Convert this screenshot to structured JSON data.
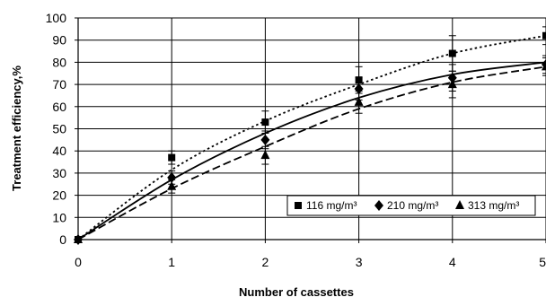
{
  "chart_data": {
    "type": "scatter",
    "title": "",
    "xlabel": "Number of cassettes",
    "ylabel": "Treatment efficiency,%",
    "xlim": [
      0,
      5
    ],
    "ylim": [
      0,
      100
    ],
    "x_ticks": [
      "0",
      "1",
      "2",
      "3",
      "4",
      "5"
    ],
    "y_ticks": [
      "0",
      "10",
      "20",
      "30",
      "40",
      "50",
      "60",
      "70",
      "80",
      "90",
      "100"
    ],
    "grid": true,
    "legend_position": "right-middle",
    "series": [
      {
        "name": "116 mg/m³",
        "marker": "square",
        "trend_style": "dotted",
        "x": [
          0,
          1,
          2,
          3,
          4,
          5
        ],
        "y": [
          0,
          37,
          53,
          72,
          84,
          92
        ],
        "error": [
          0,
          3,
          5,
          6,
          8,
          4
        ],
        "trend": [
          [
            0,
            0
          ],
          [
            1,
            31.5
          ],
          [
            2,
            53.5
          ],
          [
            3,
            70
          ],
          [
            4,
            84
          ],
          [
            5,
            92
          ]
        ]
      },
      {
        "name": "210 mg/m³",
        "marker": "diamond",
        "trend_style": "solid",
        "x": [
          0,
          1,
          2,
          3,
          4,
          5
        ],
        "y": [
          0,
          28,
          45,
          68,
          73,
          79
        ],
        "error": [
          0,
          3,
          4,
          5,
          6,
          4
        ],
        "trend": [
          [
            0,
            0
          ],
          [
            1,
            27
          ],
          [
            2,
            48
          ],
          [
            3,
            64
          ],
          [
            4,
            74.5
          ],
          [
            5,
            80
          ]
        ]
      },
      {
        "name": "313 mg/m³",
        "marker": "triangle",
        "trend_style": "dashed",
        "x": [
          0,
          1,
          2,
          3,
          4,
          5
        ],
        "y": [
          0,
          24,
          38,
          62,
          70,
          78
        ],
        "error": [
          0,
          3,
          4,
          5,
          6,
          4
        ],
        "trend": [
          [
            0,
            0
          ],
          [
            1,
            23
          ],
          [
            2,
            42
          ],
          [
            3,
            59
          ],
          [
            4,
            71
          ],
          [
            5,
            78
          ]
        ]
      }
    ]
  }
}
